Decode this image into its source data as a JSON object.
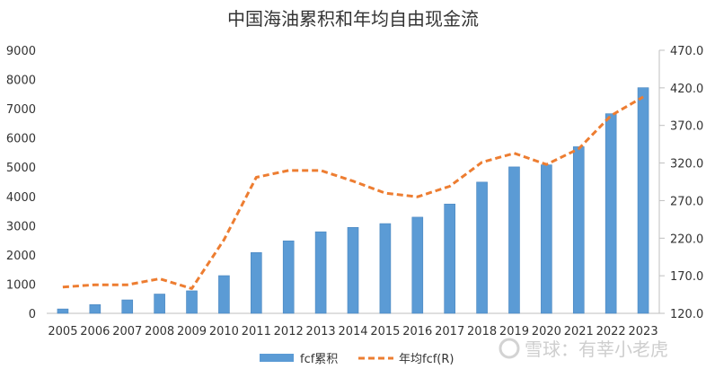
{
  "chart_data": {
    "type": "bar",
    "title": "中国海油累积和年均自由现金流",
    "categories": [
      "2005",
      "2006",
      "2007",
      "2008",
      "2009",
      "2010",
      "2011",
      "2012",
      "2013",
      "2014",
      "2015",
      "2016",
      "2017",
      "2018",
      "2019",
      "2020",
      "2021",
      "2022",
      "2023"
    ],
    "series": [
      {
        "name": "fcf累积",
        "type": "bar",
        "axis": "left",
        "color": "#5b9bd5",
        "values": [
          150,
          300,
          460,
          660,
          770,
          1290,
          2080,
          2480,
          2790,
          2940,
          3070,
          3290,
          3740,
          4490,
          5010,
          5080,
          5700,
          6830,
          7720
        ]
      },
      {
        "name": "年均fcf(R)",
        "type": "line",
        "axis": "right",
        "color": "#ed7d31",
        "style": "dashed",
        "values": [
          155,
          158,
          158,
          166,
          153,
          218,
          301,
          310,
          310,
          296,
          280,
          275,
          289,
          321,
          333,
          318,
          339,
          383,
          408
        ]
      }
    ],
    "y_left": {
      "min": 0,
      "max": 9000,
      "ticks": [
        "0",
        "1000",
        "2000",
        "3000",
        "4000",
        "5000",
        "6000",
        "7000",
        "8000",
        "9000"
      ]
    },
    "y_right": {
      "min": 120,
      "max": 470,
      "ticks": [
        "120.0",
        "170.0",
        "220.0",
        "270.0",
        "320.0",
        "370.0",
        "420.0",
        "470.0"
      ]
    },
    "grid": false,
    "legend_position": "bottom"
  },
  "watermark": {
    "text": "雪球：有莘小老虎"
  }
}
